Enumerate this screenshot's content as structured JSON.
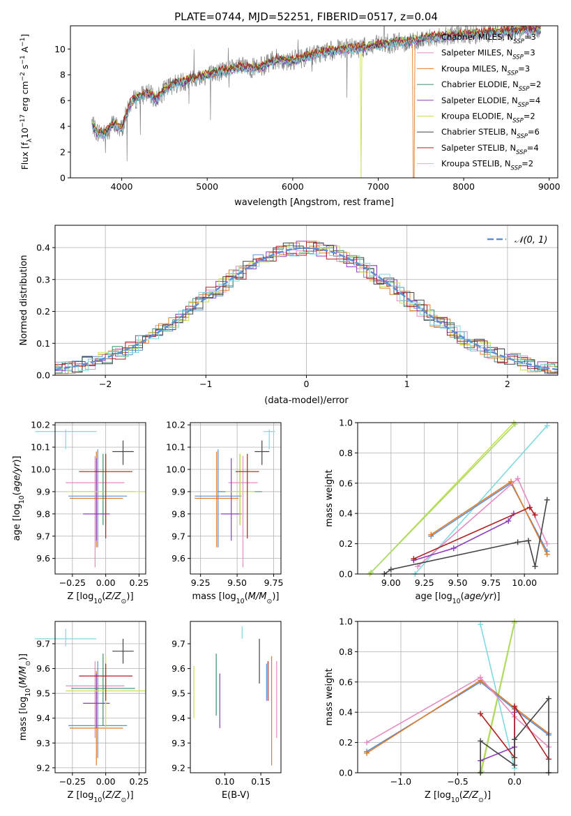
{
  "page": {
    "title": "PLATE=0744, MJD=52251, FIBERID=0517, z=0.04"
  },
  "chart_data": [
    {
      "id": "spectrum",
      "type": "line",
      "xlabel": "wavelength [Angstrom, rest frame]",
      "ylabel": "Flux [f_λ10^-17 erg cm^-2 s^-1 A^-1]",
      "xlim": [
        3400,
        9100
      ],
      "ylim": [
        0,
        11.8
      ],
      "xticks": [
        4000,
        5000,
        6000,
        7000,
        8000,
        9000
      ],
      "yticks": [
        0,
        2,
        4,
        6,
        8,
        10
      ],
      "legend_position": "top-right",
      "data_color": "#808080",
      "data_anchors": {
        "x": [
          3650,
          3700,
          3800,
          3900,
          4000,
          4100,
          4200,
          4300,
          4400,
          4500,
          4600,
          4800,
          5000,
          5200,
          5400,
          5600,
          5800,
          6000,
          6200,
          6400,
          6600,
          6800,
          7000,
          7200,
          7400,
          7600,
          7800,
          8000,
          8200,
          8400,
          8600,
          8800,
          8900
        ],
        "y": [
          4.3,
          3.6,
          3.4,
          4.2,
          3.8,
          5.8,
          6.3,
          6.6,
          6.1,
          6.8,
          7.3,
          7.6,
          8.0,
          8.3,
          8.6,
          8.5,
          9.2,
          9.1,
          9.5,
          9.8,
          10.0,
          10.1,
          10.3,
          10.5,
          10.6,
          10.9,
          11.0,
          11.1,
          11.2,
          11.3,
          11.4,
          11.5,
          11.5
        ]
      },
      "series": [
        {
          "name": "Chabrier MILES, N_SSP=3",
          "label": "Chabrier MILES, N",
          "sub": "SSP",
          "suffix": "=3",
          "color": "#5b8fd6",
          "offset": 0.0
        },
        {
          "name": "Salpeter MILES, N_SSP=3",
          "label": "Salpeter MILES, N",
          "sub": "SSP",
          "suffix": "=3",
          "color": "#e68ac3",
          "offset": 0.05
        },
        {
          "name": "Kroupa MILES, N_SSP=3",
          "label": "Kroupa MILES, N",
          "sub": "SSP",
          "suffix": "=3",
          "color": "#e07b28",
          "offset": -0.05,
          "drop": [
            7405,
            7425
          ]
        },
        {
          "name": "Chabrier ELODIE, N_SSP=2",
          "label": "Chabrier ELODIE, N",
          "sub": "SSP",
          "suffix": "=2",
          "color": "#3b8f6e",
          "offset": 0.1
        },
        {
          "name": "Salpeter ELODIE, N_SSP=4",
          "label": "Salpeter ELODIE, N",
          "sub": "SSP",
          "suffix": "=4",
          "color": "#8e3bbd",
          "offset": -0.1
        },
        {
          "name": "Kroupa ELODIE, N_SSP=2",
          "label": "Kroupa ELODIE, N",
          "sub": "SSP",
          "suffix": "=2",
          "color": "#c9e04a",
          "offset": 0.12,
          "drop": [
            6795,
            6805
          ]
        },
        {
          "name": "Chabrier STELIB, N_SSP=6",
          "label": "Chabrier STELIB, N",
          "sub": "SSP",
          "suffix": "=6",
          "color": "#444444",
          "offset": 0.0
        },
        {
          "name": "Salpeter STELIB, N_SSP=4",
          "label": "Salpeter STELIB, N",
          "sub": "SSP",
          "suffix": "=4",
          "color": "#b01e1e",
          "offset": 0.15
        },
        {
          "name": "Kroupa STELIB, N_SSP=2",
          "label": "Kroupa STELIB, N",
          "sub": "SSP",
          "suffix": "=2",
          "color": "#7fd9e0",
          "offset": -0.15
        }
      ]
    },
    {
      "id": "residuals",
      "type": "histogram",
      "xlabel": "(data-model)/error",
      "ylabel": "Normed distribution",
      "xlim": [
        -2.5,
        2.5
      ],
      "ylim": [
        0,
        0.47
      ],
      "xticks": [
        -2,
        -1,
        0,
        1,
        2
      ],
      "yticks": [
        0.0,
        0.1,
        0.2,
        0.3,
        0.4
      ],
      "grid": true,
      "bin_width": 0.1,
      "reference": {
        "name": "N(0,1)",
        "label": "𝒩(0, 1)",
        "color": "#5b8fd6",
        "style": "dashed"
      },
      "series_colors": [
        "#5b8fd6",
        "#e68ac3",
        "#e07b28",
        "#3b8f6e",
        "#8e3bbd",
        "#c9e04a",
        "#444444",
        "#b01e1e",
        "#7fd9e0"
      ]
    },
    {
      "id": "age_vs_Z",
      "type": "scatter-errorbar",
      "xlabel": "Z [log10(Z/Z☉)]",
      "ylabel": "age  [log10(age/yr)]",
      "xlim": [
        -0.38,
        0.3
      ],
      "ylim": [
        9.53,
        10.21
      ],
      "xticks": [
        -0.25,
        0.0,
        0.25
      ],
      "xtick_labels": [
        "−0.25",
        "0.00",
        "0.25"
      ],
      "yticks": [
        9.6,
        9.7,
        9.8,
        9.9,
        10.0,
        10.1,
        10.2
      ],
      "grid": true,
      "points": [
        {
          "x": -0.06,
          "y": 9.88,
          "xerr": 0.22,
          "yerr": [
            0.23,
            0.21
          ],
          "color": "#5b8fd6"
        },
        {
          "x": -0.08,
          "y": 9.94,
          "xerr": 0.22,
          "yerr": [
            0.38,
            0.12
          ],
          "color": "#e68ac3"
        },
        {
          "x": -0.07,
          "y": 9.87,
          "xerr": 0.2,
          "yerr": [
            0.22,
            0.21
          ],
          "color": "#e07b28"
        },
        {
          "x": -0.02,
          "y": 9.9,
          "xerr": 0.24,
          "yerr": [
            0.15,
            0.17
          ],
          "color": "#3b8f6e"
        },
        {
          "x": -0.07,
          "y": 9.8,
          "xerr": 0.1,
          "yerr": [
            0.12,
            0.25
          ],
          "color": "#8e3bbd"
        },
        {
          "x": 0.0,
          "y": 9.9,
          "xerr": 0.3,
          "yerr": [
            0.15,
            0.17
          ],
          "color": "#c9e04a"
        },
        {
          "x": 0.13,
          "y": 10.08,
          "xerr": 0.08,
          "yerr": [
            0.06,
            0.05
          ],
          "color": "#444444"
        },
        {
          "x": 0.0,
          "y": 9.99,
          "xerr": 0.2,
          "yerr": [
            0.3,
            0.08
          ],
          "color": "#b01e1e"
        },
        {
          "x": -0.3,
          "y": 10.17,
          "xerr": 0.23,
          "yerr": [
            0.08,
            0.01
          ],
          "color": "#7fd9e0"
        }
      ]
    },
    {
      "id": "age_vs_mass",
      "type": "scatter-errorbar",
      "xlabel": "mass [log10(M/M☉)]",
      "ylabel": "",
      "xlim": [
        9.18,
        9.8
      ],
      "ylim": [
        9.53,
        10.21
      ],
      "xticks": [
        9.25,
        9.5,
        9.75
      ],
      "xtick_labels": [
        "9.25",
        "9.50",
        "9.75"
      ],
      "yticks": [
        9.6,
        9.7,
        9.8,
        9.9,
        10.0,
        10.1,
        10.2
      ],
      "grid": true,
      "points": [
        {
          "x": 9.37,
          "y": 9.88,
          "xerr": 0.16,
          "yerr": [
            0.23,
            0.21
          ],
          "color": "#5b8fd6"
        },
        {
          "x": 9.54,
          "y": 9.94,
          "xerr": 0.1,
          "yerr": [
            0.38,
            0.12
          ],
          "color": "#e68ac3"
        },
        {
          "x": 9.36,
          "y": 9.87,
          "xerr": 0.15,
          "yerr": [
            0.22,
            0.21
          ],
          "color": "#e07b28"
        },
        {
          "x": 9.52,
          "y": 9.9,
          "xerr": 0.15,
          "yerr": [
            0.15,
            0.17
          ],
          "color": "#3b8f6e"
        },
        {
          "x": 9.46,
          "y": 9.8,
          "xerr": 0.07,
          "yerr": [
            0.12,
            0.25
          ],
          "color": "#8e3bbd"
        },
        {
          "x": 9.52,
          "y": 9.9,
          "xerr": 0.1,
          "yerr": [
            0.15,
            0.17
          ],
          "color": "#c9e04a"
        },
        {
          "x": 9.67,
          "y": 10.08,
          "xerr": 0.05,
          "yerr": [
            0.06,
            0.05
          ],
          "color": "#444444"
        },
        {
          "x": 9.57,
          "y": 9.99,
          "xerr": 0.08,
          "yerr": [
            0.3,
            0.08
          ],
          "color": "#b01e1e"
        },
        {
          "x": 9.72,
          "y": 10.17,
          "xerr": 0.04,
          "yerr": [
            0.08,
            0.01
          ],
          "color": "#7fd9e0"
        }
      ]
    },
    {
      "id": "weight_vs_age",
      "type": "line",
      "xlabel": "age  [log10(age/yr)]",
      "ylabel": "mass weight",
      "xlim": [
        8.75,
        10.25
      ],
      "ylim": [
        0,
        1.0
      ],
      "xticks": [
        9.0,
        9.25,
        9.5,
        9.75,
        10.0
      ],
      "xtick_labels": [
        "9.00",
        "9.25",
        "9.50",
        "9.75",
        "10.00"
      ],
      "yticks": [
        0.0,
        0.2,
        0.4,
        0.6,
        0.8,
        1.0
      ],
      "grid": true,
      "series": [
        {
          "color": "#c9e04a",
          "x": [
            8.84,
            9.92
          ],
          "y": [
            0.0,
            1.0
          ]
        },
        {
          "color": "#a8d96a",
          "x": [
            8.85,
            9.93
          ],
          "y": [
            0.01,
            0.99
          ]
        },
        {
          "color": "#7fd9e0",
          "x": [
            9.18,
            10.17
          ],
          "y": [
            0.0,
            0.98
          ]
        },
        {
          "color": "#5b8fd6",
          "x": [
            9.3,
            9.9,
            10.17
          ],
          "y": [
            0.25,
            0.6,
            0.15
          ]
        },
        {
          "color": "#e07b28",
          "x": [
            9.3,
            9.9,
            10.17
          ],
          "y": [
            0.26,
            0.61,
            0.13
          ]
        },
        {
          "color": "#e68ac3",
          "x": [
            9.2,
            9.95,
            10.17
          ],
          "y": [
            0.05,
            0.63,
            0.2
          ]
        },
        {
          "color": "#8e3bbd",
          "x": [
            9.17,
            9.47,
            9.88,
            9.92
          ],
          "y": [
            0.09,
            0.17,
            0.35,
            0.4
          ]
        },
        {
          "color": "#b01e1e",
          "x": [
            9.17,
            10.04,
            10.08
          ],
          "y": [
            0.1,
            0.44,
            0.39
          ]
        },
        {
          "color": "#444444",
          "x": [
            8.95,
            9.0,
            9.95,
            10.03,
            10.08,
            10.17
          ],
          "y": [
            0.0,
            0.03,
            0.21,
            0.22,
            0.05,
            0.49
          ]
        }
      ]
    },
    {
      "id": "mass_vs_Z",
      "type": "scatter-errorbar",
      "xlabel": "Z [log10(Z/Z☉)]",
      "ylabel": "mass [log10(M/M☉)]",
      "xlim": [
        -0.38,
        0.3
      ],
      "ylim": [
        9.18,
        9.79
      ],
      "xticks": [
        -0.25,
        0.0,
        0.25
      ],
      "xtick_labels": [
        "−0.25",
        "0.00",
        "0.25"
      ],
      "yticks": [
        9.2,
        9.3,
        9.4,
        9.5,
        9.6,
        9.7
      ],
      "grid": true,
      "points": [
        {
          "x": -0.06,
          "y": 9.37,
          "xerr": 0.22,
          "yerr": [
            0.13,
            0.26
          ],
          "color": "#5b8fd6"
        },
        {
          "x": -0.08,
          "y": 9.53,
          "xerr": 0.22,
          "yerr": [
            0.21,
            0.1
          ],
          "color": "#e68ac3"
        },
        {
          "x": -0.07,
          "y": 9.36,
          "xerr": 0.2,
          "yerr": [
            0.15,
            0.23
          ],
          "color": "#e07b28"
        },
        {
          "x": -0.02,
          "y": 9.52,
          "xerr": 0.24,
          "yerr": [
            0.15,
            0.14
          ],
          "color": "#3b8f6e"
        },
        {
          "x": -0.07,
          "y": 9.46,
          "xerr": 0.1,
          "yerr": [
            0.1,
            0.12
          ],
          "color": "#8e3bbd"
        },
        {
          "x": 0.0,
          "y": 9.51,
          "xerr": 0.3,
          "yerr": [
            0.15,
            0.14
          ],
          "color": "#c9e04a"
        },
        {
          "x": 0.13,
          "y": 9.67,
          "xerr": 0.08,
          "yerr": [
            0.05,
            0.05
          ],
          "color": "#444444"
        },
        {
          "x": 0.0,
          "y": 9.57,
          "xerr": 0.2,
          "yerr": [
            0.1,
            0.05
          ],
          "color": "#b01e1e"
        },
        {
          "x": -0.3,
          "y": 9.72,
          "xerr": 0.23,
          "yerr": [
            0.03,
            0.04
          ],
          "color": "#7fd9e0"
        }
      ]
    },
    {
      "id": "mass_vs_ebv",
      "type": "errorbar",
      "xlabel": "E(B-V)",
      "ylabel": "",
      "xlim": [
        0.052,
        0.178
      ],
      "ylim": [
        9.18,
        9.79
      ],
      "xticks": [
        0.1,
        0.15
      ],
      "xtick_labels": [
        "0.10",
        "0.15"
      ],
      "yticks": [
        9.2,
        9.3,
        9.4,
        9.5,
        9.6,
        9.7
      ],
      "grid": false,
      "points": [
        {
          "x": 0.057,
          "y": 9.5,
          "yerr": [
            0.1,
            0.11
          ],
          "color": "#c9e04a"
        },
        {
          "x": 0.088,
          "y": 9.55,
          "yerr": [
            0.14,
            0.11
          ],
          "color": "#3b8f6e"
        },
        {
          "x": 0.093,
          "y": 9.46,
          "yerr": [
            0.1,
            0.12
          ],
          "color": "#8e3bbd"
        },
        {
          "x": 0.124,
          "y": 9.73,
          "yerr": [
            0.01,
            0.04
          ],
          "color": "#7fd9e0"
        },
        {
          "x": 0.148,
          "y": 9.63,
          "yerr": [
            0.09,
            0.09
          ],
          "color": "#444444"
        },
        {
          "x": 0.158,
          "y": 9.55,
          "yerr": [
            0.08,
            0.07
          ],
          "color": "#5b8fd6"
        },
        {
          "x": 0.16,
          "y": 9.56,
          "yerr": [
            0.09,
            0.07
          ],
          "color": "#b01e1e"
        },
        {
          "x": 0.165,
          "y": 9.42,
          "yerr": [
            0.21,
            0.23
          ],
          "color": "#e07b28"
        },
        {
          "x": 0.172,
          "y": 9.47,
          "yerr": [
            0.15,
            0.16
          ],
          "color": "#e68ac3"
        }
      ]
    },
    {
      "id": "weight_vs_Z",
      "type": "line",
      "xlabel": "Z [log10(Z/Z☉)]",
      "ylabel": "mass weight",
      "xlim": [
        -1.38,
        0.38
      ],
      "ylim": [
        0,
        1.0
      ],
      "xticks": [
        -1.0,
        -0.5,
        0.0
      ],
      "xtick_labels": [
        "−1.0",
        "−0.5",
        "0.0"
      ],
      "yticks": [
        0.0,
        0.2,
        0.4,
        0.6,
        0.8,
        1.0
      ],
      "grid": true,
      "series": [
        {
          "color": "#c9e04a",
          "x": [
            -0.3,
            0.0
          ],
          "y": [
            0.0,
            1.0
          ]
        },
        {
          "color": "#a8d96a",
          "x": [
            -0.29,
            0.0
          ],
          "y": [
            0.01,
            0.99
          ]
        },
        {
          "color": "#7fd9e0",
          "x": [
            -0.3,
            0.0
          ],
          "y": [
            0.98,
            0.03
          ]
        },
        {
          "color": "#5b8fd6",
          "x": [
            -1.3,
            -0.3,
            0.0,
            0.3
          ],
          "y": [
            0.14,
            0.6,
            0.42,
            0.25
          ]
        },
        {
          "color": "#e07b28",
          "x": [
            -1.3,
            -0.3,
            0.0,
            0.3
          ],
          "y": [
            0.13,
            0.61,
            0.43,
            0.26
          ]
        },
        {
          "color": "#e68ac3",
          "x": [
            -1.3,
            -0.3,
            0.0,
            0.3
          ],
          "y": [
            0.2,
            0.63,
            0.37,
            0.17
          ]
        },
        {
          "color": "#8e3bbd",
          "x": [
            -0.3,
            0.0,
            0.0
          ],
          "y": [
            0.08,
            0.17,
            0.4
          ]
        },
        {
          "color": "#b01e1e",
          "x": [
            -0.3,
            0.0,
            0.0,
            0.3
          ],
          "y": [
            0.39,
            0.1,
            0.44,
            0.09
          ]
        },
        {
          "color": "#444444",
          "x": [
            -0.3,
            -0.3,
            0.0,
            0.0,
            0.3,
            0.3
          ],
          "y": [
            0.0,
            0.21,
            0.05,
            0.22,
            0.49,
            0.0
          ]
        }
      ]
    }
  ]
}
